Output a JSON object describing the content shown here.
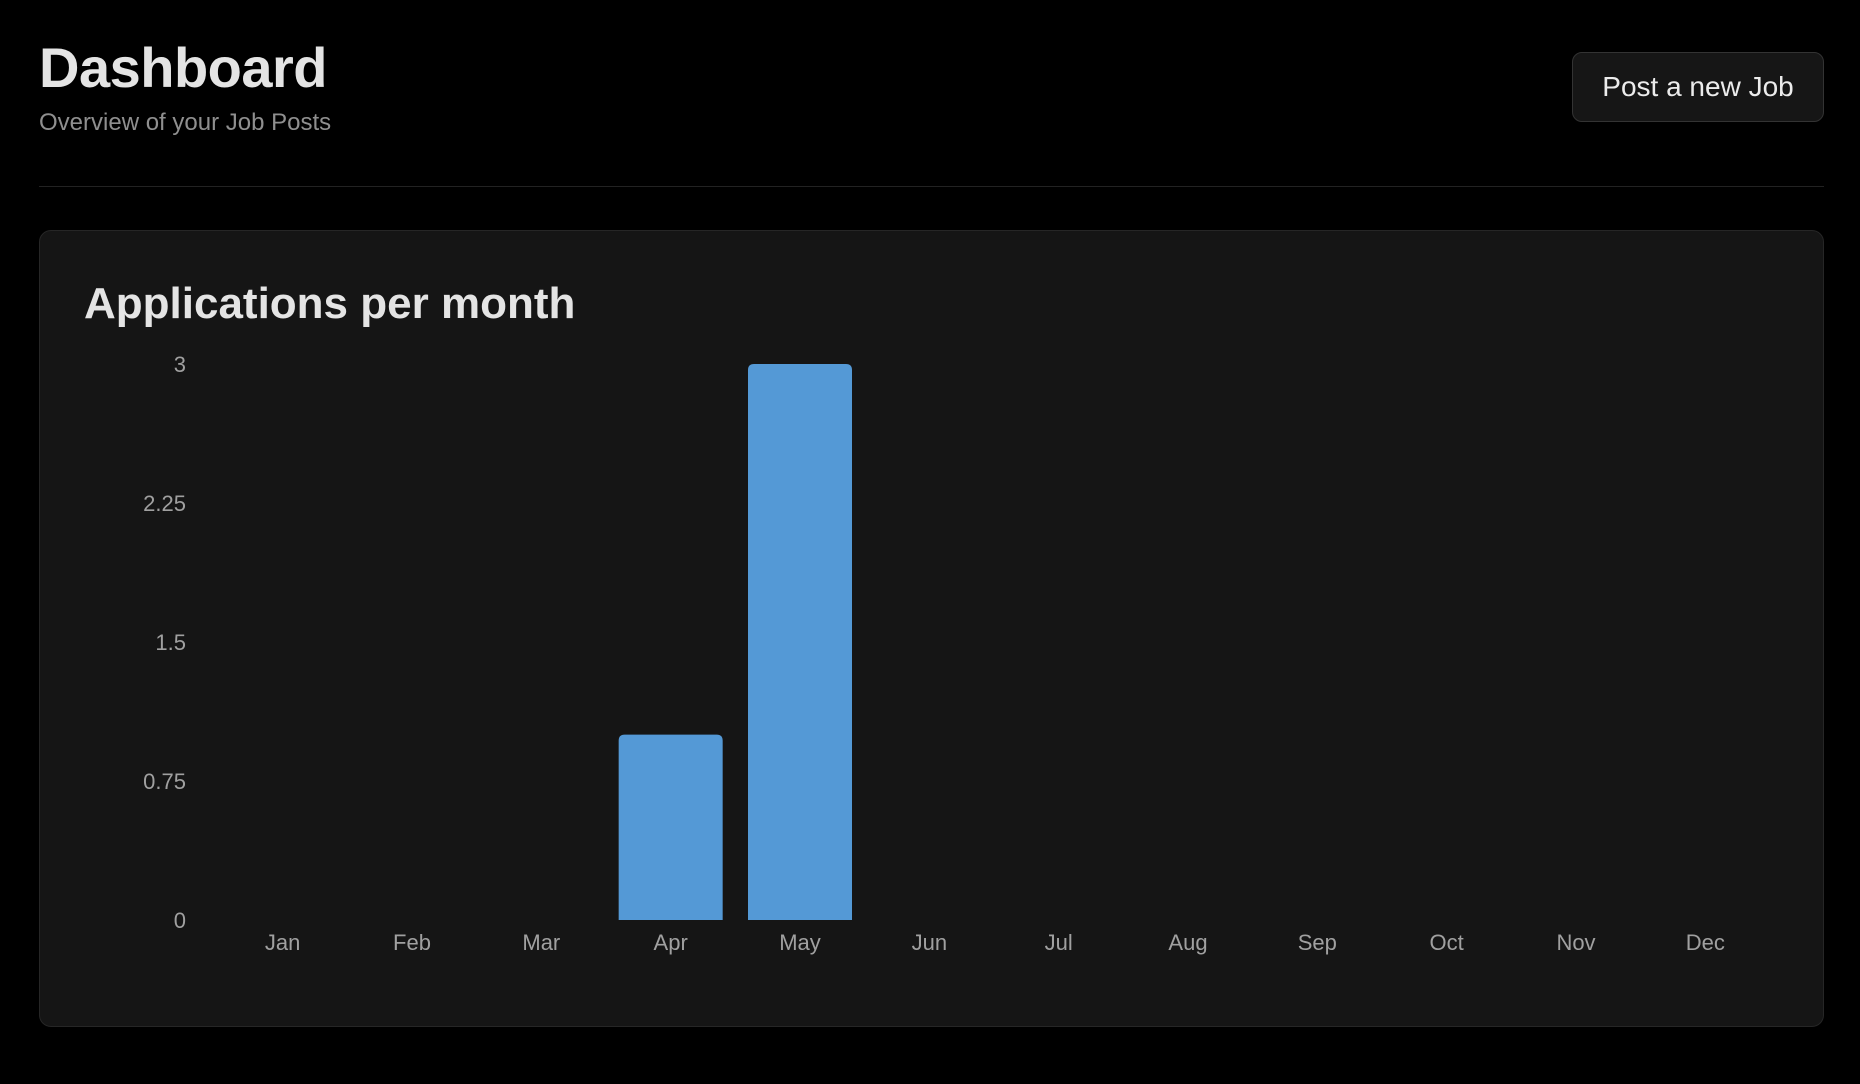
{
  "header": {
    "title": "Dashboard",
    "subtitle": "Overview of your Job Posts",
    "post_job_label": "Post a new Job"
  },
  "chart_data": {
    "type": "bar",
    "title": "Applications per month",
    "categories": [
      "Jan",
      "Feb",
      "Mar",
      "Apr",
      "May",
      "Jun",
      "Jul",
      "Aug",
      "Sep",
      "Oct",
      "Nov",
      "Dec"
    ],
    "values": [
      0,
      0,
      0,
      1,
      3,
      0,
      0,
      0,
      0,
      0,
      0,
      0
    ],
    "yticks": [
      "0",
      "0.75",
      "1.5",
      "2.25",
      "3"
    ],
    "ylim": [
      0,
      3
    ],
    "bar_color": "#5499d6",
    "grid": false,
    "xlabel": "",
    "ylabel": ""
  }
}
